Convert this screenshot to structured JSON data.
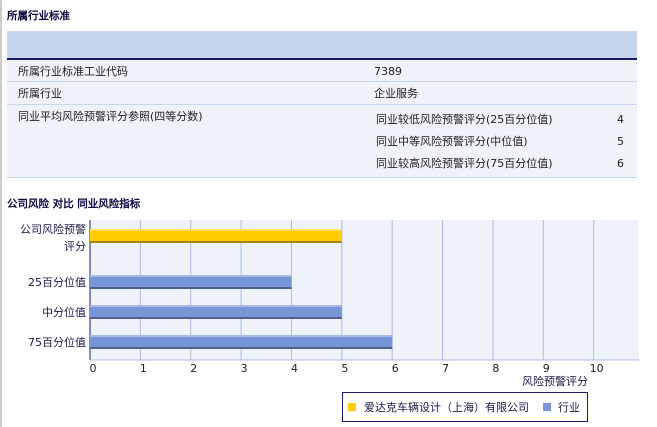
{
  "section1": {
    "title": "所属行业标准",
    "rows": [
      {
        "label": "所属行业标准工业代码",
        "value": "7389"
      },
      {
        "label": "所属行业",
        "value": "企业服务"
      }
    ],
    "ref": {
      "label": "同业平均风险预警评分参照(四等分数)",
      "items": [
        {
          "label": "同业较低风险预警评分(25百分位值)",
          "value": "4"
        },
        {
          "label": "同业中等风险预警评分(中位值)",
          "value": "5"
        },
        {
          "label": "同业较高风险预警评分(75百分位值)",
          "value": "6"
        }
      ]
    }
  },
  "chart_data": {
    "type": "bar",
    "orientation": "horizontal",
    "title": "公司风险 对比 同业风险指标",
    "categories": [
      "公司风险预警评分",
      "25百分位值",
      "中分位值",
      "75百分位值"
    ],
    "values": [
      5,
      4,
      5,
      6
    ],
    "series_of_category": [
      0,
      1,
      1,
      1
    ],
    "series": [
      {
        "name": "爱达克车辆设计（上海）有限公司",
        "color": "#ffcc00"
      },
      {
        "name": "行业",
        "color": "#7895d8"
      }
    ],
    "xlabel": "风险预警评分",
    "xlim": [
      0,
      10.9
    ],
    "xticks": [
      "0",
      "1",
      "2",
      "3",
      "4",
      "5",
      "6",
      "7",
      "8",
      "9",
      "10"
    ],
    "grid": true,
    "legend": "bottom-right"
  }
}
